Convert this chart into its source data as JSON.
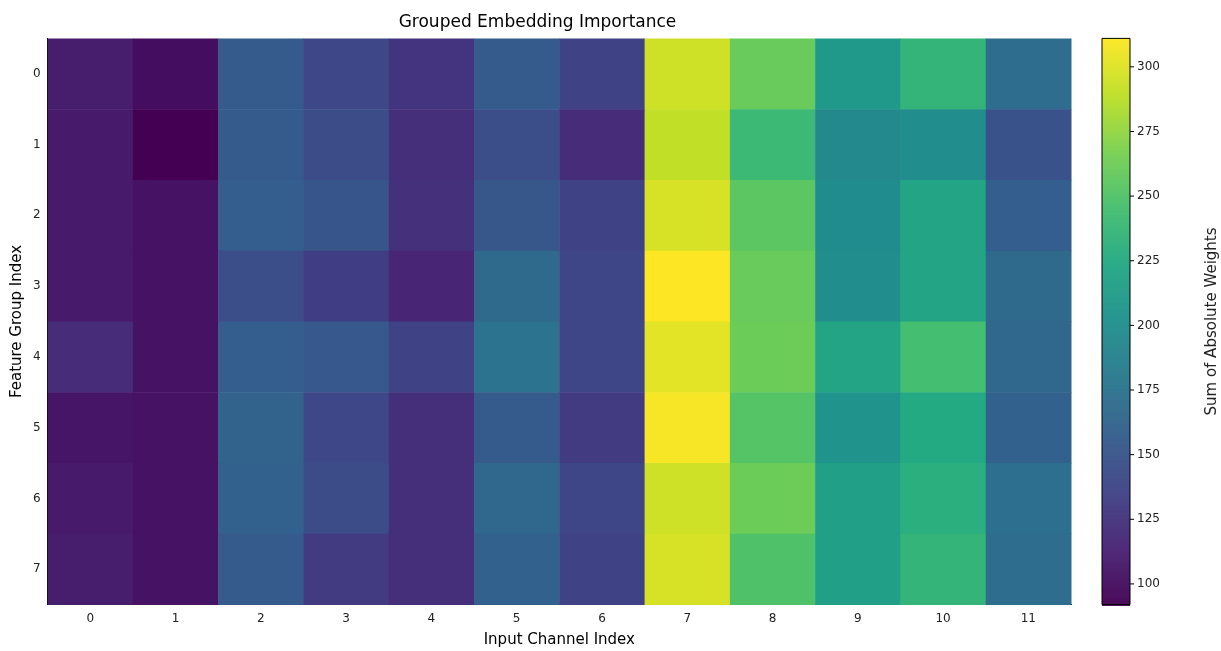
{
  "chart_data": {
    "type": "heatmap",
    "title": "Grouped Embedding Importance",
    "xlabel": "Input Channel Index",
    "ylabel": "Feature Group Index",
    "clabel": "Sum of Absolute Weights",
    "categories": [
      "0",
      "1",
      "2",
      "3",
      "4",
      "5",
      "6",
      "7",
      "8",
      "9",
      "10",
      "11"
    ],
    "y_categories": [
      "0",
      "1",
      "2",
      "3",
      "4",
      "5",
      "6",
      "7"
    ],
    "cells": [
      [
        110,
        100,
        155,
        140,
        125,
        155,
        135,
        295,
        260,
        210,
        235,
        170
      ],
      [
        108,
        92,
        155,
        143,
        122,
        145,
        120,
        290,
        240,
        195,
        200,
        148
      ],
      [
        108,
        103,
        158,
        150,
        123,
        152,
        135,
        298,
        255,
        198,
        220,
        158
      ],
      [
        108,
        103,
        145,
        132,
        115,
        168,
        138,
        311,
        260,
        200,
        220,
        168
      ],
      [
        120,
        103,
        158,
        153,
        135,
        175,
        138,
        302,
        262,
        220,
        245,
        165
      ],
      [
        105,
        103,
        162,
        140,
        122,
        155,
        130,
        309,
        252,
        205,
        225,
        160
      ],
      [
        108,
        103,
        160,
        143,
        122,
        165,
        138,
        295,
        262,
        215,
        230,
        172
      ],
      [
        110,
        103,
        155,
        130,
        122,
        160,
        135,
        298,
        250,
        215,
        235,
        170
      ]
    ],
    "clim": [
      92,
      311
    ],
    "cticks": [
      100,
      125,
      150,
      175,
      200,
      225,
      250,
      275,
      300
    ]
  }
}
